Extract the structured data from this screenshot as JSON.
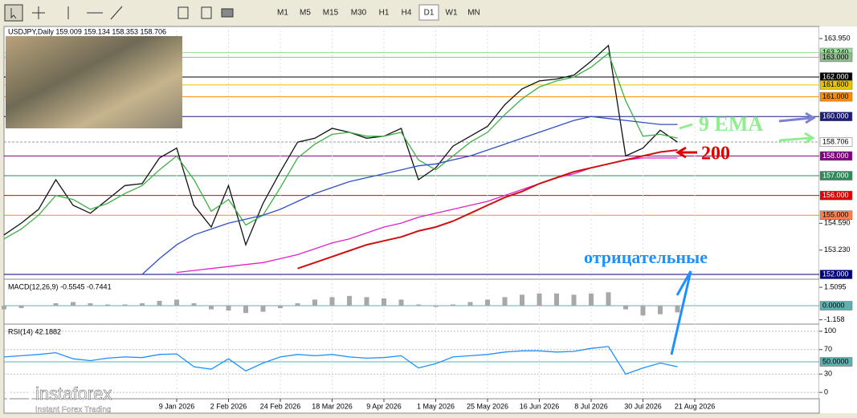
{
  "toolbar": {
    "timeframes": [
      "M1",
      "M5",
      "M15",
      "M30",
      "H1",
      "H4",
      "D1",
      "W1",
      "MN"
    ],
    "active": "D1"
  },
  "logo": {
    "name": "instaforex",
    "tagline": "Instant Forex Trading"
  },
  "chart_data": [
    {
      "type": "line",
      "title": "USDJPY,Daily  159.009 159.134 158.353 158.706",
      "categories": [
        null,
        null,
        null,
        null,
        null,
        null,
        null,
        null,
        null,
        null,
        "9 Jan 2026",
        null,
        null,
        "2 Feb 2026",
        null,
        null,
        "24 Feb 2026",
        null,
        null,
        "18 Mar 2026",
        null,
        null,
        "9 Apr 2026",
        null,
        null,
        "1 May 2026",
        null,
        null,
        "25 May 2026",
        null,
        null,
        "16 Jun 2026",
        null,
        null,
        "8 Jul 2026",
        null,
        null,
        "30 Jul 2026",
        null,
        null,
        "21 Aug 2026"
      ],
      "series": [
        {
          "color": "#111111",
          "values": [
            154.0,
            154.6,
            155.3,
            156.8,
            155.5,
            155.1,
            155.8,
            156.5,
            156.6,
            157.9,
            158.4,
            155.5,
            154.4,
            156.5,
            153.5,
            155.6,
            157.2,
            158.7,
            158.9,
            159.4,
            159.2,
            158.9,
            159.0,
            159.4,
            156.8,
            157.4,
            158.5,
            159.0,
            159.5,
            160.6,
            161.4,
            161.8,
            161.9,
            162.1,
            162.8,
            163.6,
            158.0,
            158.4,
            159.3,
            158.7,
            null
          ]
        },
        {
          "name": "9 EMA",
          "color": "#3cb043",
          "values": [
            153.8,
            154.3,
            155.0,
            156.0,
            155.8,
            155.3,
            155.6,
            156.1,
            156.5,
            157.3,
            158.0,
            156.8,
            155.2,
            155.8,
            154.5,
            155.0,
            156.4,
            157.9,
            158.6,
            159.1,
            159.2,
            159.0,
            159.0,
            159.2,
            157.8,
            157.3,
            158.0,
            158.7,
            159.2,
            160.1,
            160.9,
            161.5,
            161.8,
            162.0,
            162.5,
            163.2,
            160.8,
            159.0,
            159.1,
            158.9,
            null
          ]
        },
        {
          "color": "#3050c0",
          "values": [
            null,
            null,
            null,
            null,
            null,
            null,
            null,
            null,
            152.0,
            152.8,
            153.5,
            154.0,
            154.3,
            154.6,
            154.8,
            155.0,
            155.3,
            155.7,
            156.1,
            156.4,
            156.7,
            156.9,
            157.1,
            157.3,
            157.5,
            157.6,
            157.8,
            158.0,
            158.3,
            158.6,
            158.9,
            159.2,
            159.5,
            159.8,
            160.0,
            159.9,
            159.8,
            159.7,
            159.6,
            159.6,
            null
          ]
        },
        {
          "color": "#e020d0",
          "values": [
            null,
            null,
            null,
            null,
            null,
            null,
            null,
            null,
            null,
            null,
            152.1,
            152.2,
            152.3,
            152.4,
            152.5,
            152.6,
            152.8,
            153.0,
            153.3,
            153.6,
            153.8,
            154.1,
            154.4,
            154.6,
            154.9,
            155.1,
            155.3,
            155.5,
            155.7,
            156.0,
            156.3,
            156.6,
            156.9,
            157.1,
            157.4,
            157.6,
            157.8,
            157.9,
            157.9,
            157.9,
            null
          ]
        },
        {
          "name": "200",
          "color": "#d01010",
          "values": [
            null,
            null,
            null,
            null,
            null,
            null,
            null,
            null,
            null,
            null,
            null,
            null,
            null,
            null,
            null,
            null,
            null,
            152.3,
            152.6,
            152.9,
            153.2,
            153.5,
            153.7,
            153.9,
            154.2,
            154.4,
            154.7,
            155.1,
            155.5,
            155.9,
            156.2,
            156.6,
            156.9,
            157.2,
            157.4,
            157.6,
            157.8,
            158.0,
            158.2,
            158.3,
            null
          ]
        }
      ],
      "ylim": [
        151.88,
        164.48
      ],
      "yticks": [
        {
          "value": 163.95,
          "label": "163.950"
        },
        {
          "value": 154.59,
          "label": "154.590"
        },
        {
          "value": 153.23,
          "label": "153.230"
        }
      ],
      "levels": [
        {
          "value": 163.24,
          "label": "163.240",
          "color": "#9be39b"
        },
        {
          "value": 163.0,
          "label": "163.000",
          "color": "#8fbc8f"
        },
        {
          "value": 162.0,
          "label": "162.000",
          "color": "#000000"
        },
        {
          "value": 161.6,
          "label": "161.600",
          "color": "#e6c200"
        },
        {
          "value": 161.0,
          "label": "161.000",
          "color": "#ff8c00"
        },
        {
          "value": 160.0,
          "label": "160.000",
          "color": "#1c1c78"
        },
        {
          "value": 158.706,
          "label": "158.706",
          "color": "#ffffff"
        },
        {
          "value": 158.0,
          "label": "158.000",
          "color": "#800080"
        },
        {
          "value": 157.0,
          "label": "157.000",
          "color": "#2e8b57"
        },
        {
          "value": 156.0,
          "label": "156.000",
          "color": "#e00000"
        },
        {
          "value": 155.0,
          "label": "155.000",
          "color": "#ff7f50"
        },
        {
          "value": 152.0,
          "label": "152.000",
          "color": "#000080"
        }
      ],
      "annotation": "отрицательные"
    },
    {
      "type": "bar",
      "title": "MACD(12,26,9) -0.5545 -0.7441",
      "color": "#a8a8a8",
      "values": [
        -0.3,
        -0.2,
        0,
        0.2,
        0.3,
        0.2,
        0.1,
        0.1,
        0.2,
        0.4,
        0.5,
        0.2,
        -0.3,
        -0.4,
        -0.6,
        -0.5,
        -0.2,
        0.2,
        0.5,
        0.7,
        0.8,
        0.7,
        0.6,
        0.5,
        0.1,
        -0.1,
        0.1,
        0.3,
        0.5,
        0.7,
        0.9,
        1.0,
        1.0,
        0.9,
        1.0,
        1.1,
        -0.3,
        -0.8,
        -0.7,
        -0.55
      ],
      "ylim": [
        -1.38,
        2.04
      ],
      "yticks": [
        1.5095,
        -1.158
      ],
      "levels": [
        {
          "value": 0,
          "label": "0.0000",
          "color": "#5fb0b0"
        }
      ]
    },
    {
      "type": "line",
      "title": "RSI(14) 42.1882",
      "series": [
        {
          "color": "#1e90ff",
          "values": [
            58,
            60,
            62,
            65,
            55,
            52,
            56,
            58,
            57,
            62,
            63,
            42,
            38,
            55,
            35,
            48,
            58,
            62,
            60,
            62,
            58,
            56,
            57,
            60,
            40,
            47,
            58,
            60,
            62,
            66,
            68,
            68,
            66,
            67,
            72,
            75,
            30,
            40,
            48,
            42
          ]
        }
      ],
      "ylim": [
        -9,
        109
      ],
      "yticks": [
        100,
        70,
        30,
        0
      ],
      "levels": [
        {
          "value": 50,
          "label": "50.0000",
          "color": "#5fb0b0"
        }
      ]
    }
  ]
}
